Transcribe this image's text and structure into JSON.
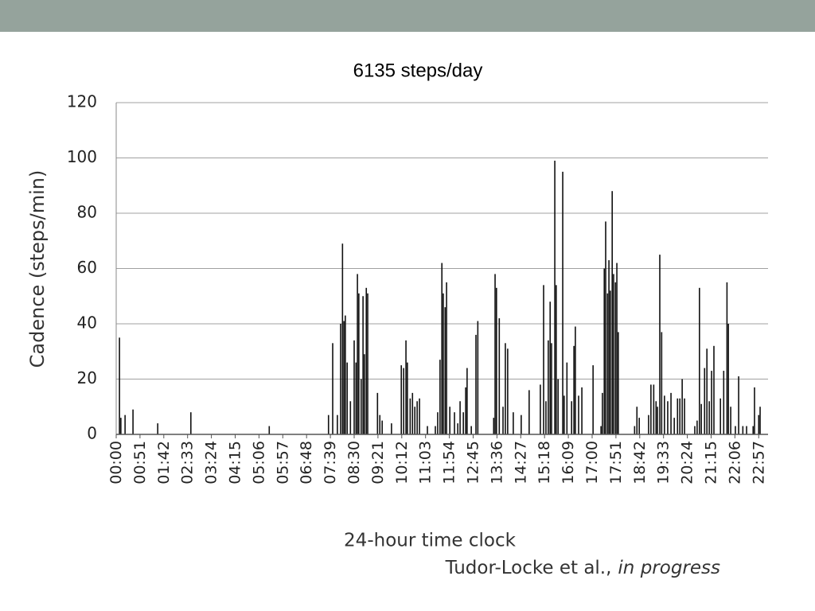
{
  "chart_data": {
    "type": "bar",
    "title": "6135 steps/day",
    "y_label": "Cadence (steps/min)",
    "x_label": "24-hour time clock",
    "source": "Tudor-Locke et al.,",
    "source_note": "in progress",
    "color": "#111111",
    "grid": true,
    "ylim": [
      0,
      120
    ],
    "yticks": [
      0,
      20,
      40,
      60,
      80,
      100,
      120
    ],
    "xlim": [
      "00:00",
      "23:17"
    ],
    "xticks": [
      "00:00",
      "00:51",
      "01:42",
      "02:33",
      "03:24",
      "04:15",
      "05:06",
      "05:57",
      "06:48",
      "07:39",
      "08:30",
      "09:21",
      "10:12",
      "11:03",
      "11:54",
      "12:45",
      "13:36",
      "14:27",
      "15:18",
      "16:09",
      "17:00",
      "17:51",
      "18:42",
      "19:33",
      "20:24",
      "21:15",
      "22:06",
      "22:57"
    ],
    "x": [
      "00:07",
      "00:10",
      "00:19",
      "00:36",
      "01:29",
      "02:40",
      "05:28",
      "07:35",
      "07:44",
      "07:54",
      "08:01",
      "08:05",
      "08:08",
      "08:11",
      "08:15",
      "08:22",
      "08:30",
      "08:34",
      "08:37",
      "08:40",
      "08:45",
      "08:49",
      "08:52",
      "08:56",
      "08:59",
      "09:20",
      "09:25",
      "09:30",
      "09:50",
      "10:11",
      "10:16",
      "10:21",
      "10:24",
      "10:30",
      "10:35",
      "10:40",
      "10:45",
      "10:50",
      "11:07",
      "11:24",
      "11:29",
      "11:34",
      "11:38",
      "11:41",
      "11:45",
      "11:48",
      "11:55",
      "12:05",
      "12:12",
      "12:17",
      "12:24",
      "12:29",
      "12:32",
      "12:41",
      "12:51",
      "12:55",
      "13:29",
      "13:32",
      "13:35",
      "13:41",
      "13:49",
      "13:54",
      "13:59",
      "14:11",
      "14:28",
      "14:45",
      "15:09",
      "15:16",
      "15:21",
      "15:26",
      "15:30",
      "15:33",
      "15:40",
      "15:43",
      "15:47",
      "15:57",
      "16:00",
      "16:06",
      "16:16",
      "16:21",
      "16:24",
      "16:31",
      "16:38",
      "17:02",
      "17:19",
      "17:22",
      "17:26",
      "17:29",
      "17:33",
      "17:36",
      "17:39",
      "17:43",
      "17:46",
      "17:50",
      "17:53",
      "17:56",
      "18:31",
      "18:36",
      "18:41",
      "19:01",
      "19:06",
      "19:12",
      "19:17",
      "19:20",
      "19:25",
      "19:29",
      "19:35",
      "19:42",
      "19:49",
      "19:56",
      "20:03",
      "20:08",
      "20:13",
      "20:18",
      "20:40",
      "20:45",
      "20:50",
      "20:54",
      "21:01",
      "21:06",
      "21:11",
      "21:16",
      "21:21",
      "21:35",
      "21:42",
      "21:49",
      "21:52",
      "21:57",
      "22:07",
      "22:14",
      "22:23",
      "22:31",
      "22:45",
      "22:48",
      "22:57",
      "23:00"
    ],
    "values": [
      35,
      6,
      7,
      9,
      4,
      8,
      3,
      7,
      33,
      7,
      40,
      69,
      41,
      43,
      26,
      12,
      34,
      26,
      58,
      51,
      20,
      50,
      29,
      53,
      51,
      15,
      7,
      5,
      4,
      25,
      24,
      34,
      26,
      13,
      15,
      10,
      12,
      13,
      3,
      3,
      8,
      27,
      62,
      51,
      46,
      55,
      10,
      8,
      4,
      12,
      8,
      17,
      24,
      3,
      36,
      41,
      6,
      58,
      53,
      42,
      10,
      33,
      31,
      8,
      7,
      16,
      18,
      54,
      12,
      34,
      48,
      33,
      99,
      54,
      20,
      95,
      14,
      26,
      12,
      32,
      39,
      14,
      17,
      25,
      3,
      15,
      60,
      77,
      51,
      63,
      52,
      88,
      58,
      55,
      62,
      37,
      3,
      10,
      6,
      7,
      18,
      18,
      12,
      10,
      65,
      37,
      14,
      12,
      15,
      6,
      13,
      13,
      20,
      13,
      3,
      5,
      53,
      11,
      24,
      31,
      12,
      23,
      32,
      13,
      23,
      55,
      40,
      10,
      3,
      21,
      3,
      3,
      3,
      17,
      7,
      10
    ]
  }
}
